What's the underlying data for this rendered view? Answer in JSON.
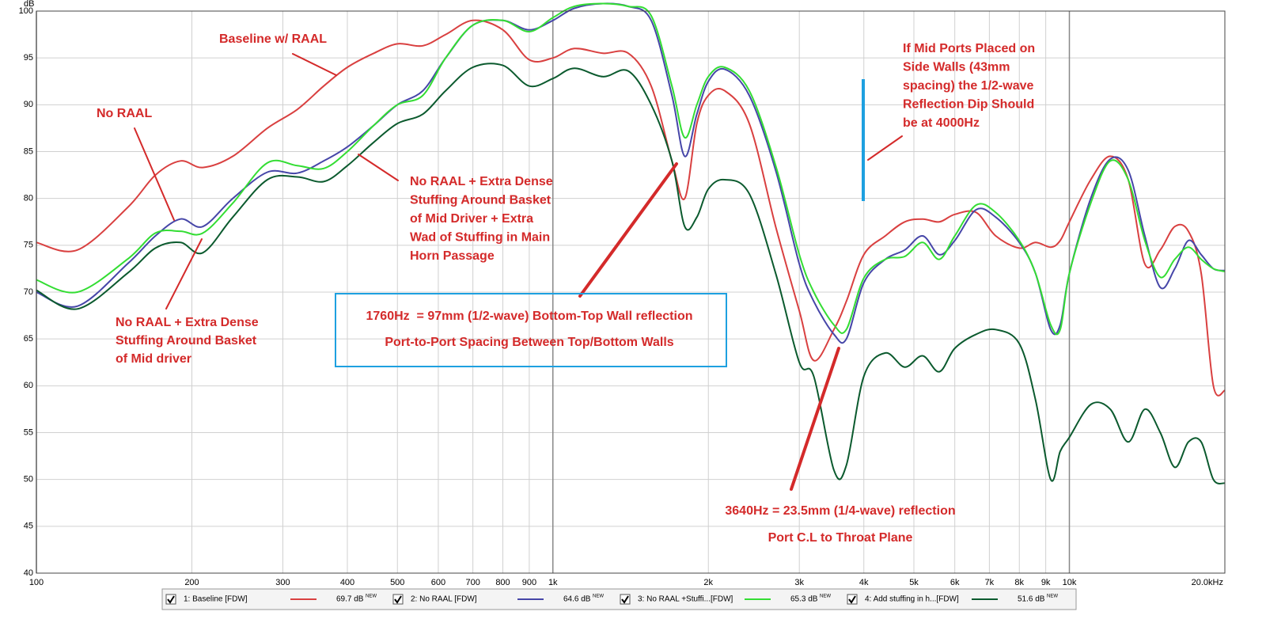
{
  "chart_data": {
    "type": "line",
    "y_label": "dB",
    "xscale": "log",
    "grid": true,
    "xlim": [
      100,
      20000
    ],
    "ylim": [
      40,
      100
    ],
    "xticks": [
      100,
      200,
      300,
      400,
      500,
      600,
      700,
      800,
      900,
      {
        "value": 1000,
        "label": "1k"
      },
      {
        "value": 2000,
        "label": "2k"
      },
      {
        "value": 3000,
        "label": "3k"
      },
      {
        "value": 4000,
        "label": "4k"
      },
      {
        "value": 5000,
        "label": "5k"
      },
      {
        "value": 6000,
        "label": "6k"
      },
      {
        "value": 7000,
        "label": "7k"
      },
      {
        "value": 8000,
        "label": "8k"
      },
      {
        "value": 9000,
        "label": "9k"
      },
      {
        "value": 10000,
        "label": "10k"
      },
      {
        "value": 20000,
        "label": "20.0kHz"
      }
    ],
    "yticks": [
      40,
      45,
      50,
      55,
      60,
      65,
      70,
      75,
      80,
      85,
      90,
      95,
      100
    ],
    "x": [
      100,
      120,
      150,
      170,
      190,
      210,
      240,
      280,
      320,
      360,
      400,
      450,
      500,
      560,
      620,
      700,
      800,
      900,
      1000,
      1100,
      1250,
      1400,
      1550,
      1700,
      1800,
      1900,
      2000,
      2150,
      2400,
      2700,
      3000,
      3200,
      3500,
      3700,
      4000,
      4400,
      4800,
      5200,
      5600,
      6000,
      6600,
      7200,
      8000,
      8600,
      9200,
      9600,
      10000,
      11000,
      12000,
      13000,
      14000,
      15000,
      16000,
      17000,
      18000,
      19000,
      20000
    ],
    "series": [
      {
        "name": "1: Baseline [FDW]",
        "color": "#d94040",
        "legend_value": "69.7 dB",
        "legend_tag": "NEW",
        "values": [
          75.3,
          74.5,
          79,
          82.5,
          84,
          83.3,
          84.5,
          87.5,
          89.5,
          92,
          94,
          95.5,
          96.5,
          96.3,
          97.5,
          99,
          98,
          94.8,
          95,
          96,
          95.5,
          95.5,
          92,
          84,
          80,
          88,
          91,
          91.5,
          88,
          77,
          68,
          62.7,
          66,
          69,
          74,
          76,
          77.5,
          77.8,
          77.5,
          78.3,
          78.5,
          76,
          74.7,
          75.3,
          74.8,
          75.5,
          77.5,
          82,
          84.5,
          82,
          73,
          74.5,
          77,
          76.5,
          72,
          60,
          59.5
        ]
      },
      {
        "name": "2: No RAAL [FDW]",
        "color": "#4646a8",
        "legend_value": "64.6 dB",
        "legend_tag": "NEW",
        "values": [
          70,
          68.5,
          73,
          76,
          77.8,
          77,
          80,
          82.8,
          82.7,
          84,
          85.5,
          87.8,
          90,
          91.5,
          95,
          98.5,
          99,
          98,
          99,
          100.3,
          100.8,
          100.5,
          99,
          91,
          84.5,
          89,
          92.5,
          93.8,
          91,
          83,
          73,
          69,
          65.5,
          65,
          71,
          73.5,
          74.5,
          76,
          74,
          75.5,
          78.8,
          78,
          75.3,
          72,
          66,
          66.5,
          72,
          80,
          84.2,
          83,
          76,
          70.5,
          72.5,
          75.5,
          74,
          72.5,
          72.3
        ]
      },
      {
        "name": "3: No RAAL +Stuffi...[FDW]",
        "color": "#33dd33",
        "legend_value": "65.3 dB",
        "legend_tag": "NEW",
        "values": [
          71.3,
          70,
          73.5,
          76.3,
          76.5,
          76.3,
          79.5,
          83.8,
          83.5,
          83.2,
          85,
          87.8,
          90,
          91,
          95,
          98.5,
          99,
          97.8,
          99.3,
          100.5,
          100.8,
          100.5,
          99.5,
          92,
          86.5,
          90,
          93,
          94,
          91.5,
          83.5,
          74,
          70,
          66.5,
          66,
          71.5,
          73.5,
          73.8,
          75.3,
          73.5,
          76,
          79.3,
          78.5,
          75.5,
          72,
          66.5,
          66,
          72,
          79.5,
          84,
          82,
          75.5,
          71.6,
          73.5,
          74.8,
          73.5,
          72.5,
          72.2
        ]
      },
      {
        "name": "4: Add stuffing in h...[FDW]",
        "color": "#0b5a2e",
        "legend_value": "51.6 dB",
        "legend_tag": "NEW",
        "values": [
          70.2,
          68.2,
          72,
          74.7,
          75.3,
          74.2,
          78,
          82,
          82.3,
          81.8,
          83.5,
          86,
          88,
          89,
          91.5,
          94,
          94.2,
          92,
          92.8,
          93.9,
          93,
          93.6,
          90,
          84,
          77,
          78,
          81,
          82,
          80.5,
          72,
          62.5,
          61,
          51,
          51.5,
          61,
          63.5,
          62,
          63.2,
          61.5,
          64,
          65.5,
          66,
          64.5,
          58.5,
          50,
          53,
          54.5,
          58,
          57.5,
          54,
          57.5,
          55,
          51.3,
          54,
          54,
          50,
          49.6
        ]
      }
    ],
    "annotations": [
      {
        "lines": [
          "Baseline w/ RAAL"
        ]
      },
      {
        "lines": [
          "No RAAL"
        ]
      },
      {
        "lines": [
          "No RAAL + Extra Dense",
          "Stuffing Around Basket",
          "of Mid Driver + Extra",
          "Wad of Stuffing in Main",
          "Horn Passage"
        ]
      },
      {
        "lines": [
          "No RAAL + Extra Dense",
          "Stuffing Around Basket",
          "of Mid driver"
        ]
      },
      {
        "lines": [
          "1760Hz  = 97mm (1/2-wave) Bottom-Top Wall reflection",
          "Port-to-Port Spacing Between Top/Bottom Walls"
        ]
      },
      {
        "lines": [
          "If Mid Ports Placed on",
          "Side Walls (43mm",
          "spacing) the 1/2-wave",
          "Reflection Dip Should",
          "be at 4000Hz"
        ]
      },
      {
        "lines": [
          "3640Hz = 23.5mm (1/4-wave) reflection",
          "Port C.L to Throat Plane"
        ]
      }
    ]
  }
}
